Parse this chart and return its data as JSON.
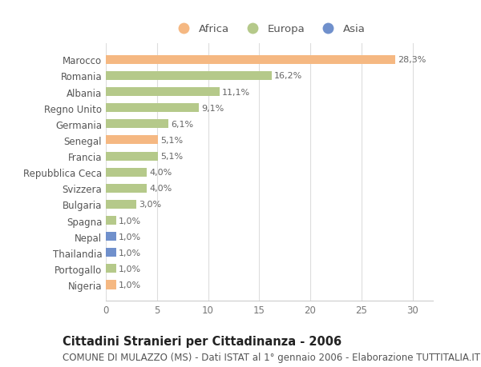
{
  "countries": [
    "Marocco",
    "Romania",
    "Albania",
    "Regno Unito",
    "Germania",
    "Senegal",
    "Francia",
    "Repubblica Ceca",
    "Svizzera",
    "Bulgaria",
    "Spagna",
    "Nepal",
    "Thailandia",
    "Portogallo",
    "Nigeria"
  ],
  "values": [
    28.3,
    16.2,
    11.1,
    9.1,
    6.1,
    5.1,
    5.1,
    4.0,
    4.0,
    3.0,
    1.0,
    1.0,
    1.0,
    1.0,
    1.0
  ],
  "labels": [
    "28,3%",
    "16,2%",
    "11,1%",
    "9,1%",
    "6,1%",
    "5,1%",
    "5,1%",
    "4,0%",
    "4,0%",
    "3,0%",
    "1,0%",
    "1,0%",
    "1,0%",
    "1,0%",
    "1,0%"
  ],
  "continents": [
    "Africa",
    "Europa",
    "Europa",
    "Europa",
    "Europa",
    "Africa",
    "Europa",
    "Europa",
    "Europa",
    "Europa",
    "Europa",
    "Asia",
    "Asia",
    "Europa",
    "Africa"
  ],
  "colors": {
    "Africa": "#F5B882",
    "Europa": "#B5C98A",
    "Asia": "#7090CC"
  },
  "title": "Cittadini Stranieri per Cittadinanza - 2006",
  "subtitle": "COMUNE DI MULAZZO (MS) - Dati ISTAT al 1° gennaio 2006 - Elaborazione TUTTITALIA.IT",
  "xlim": [
    0,
    32
  ],
  "xticks": [
    0,
    5,
    10,
    15,
    20,
    25,
    30
  ],
  "background_color": "#ffffff",
  "bar_height": 0.55,
  "title_fontsize": 10.5,
  "subtitle_fontsize": 8.5,
  "label_fontsize": 8,
  "tick_fontsize": 8.5,
  "legend_fontsize": 9.5
}
